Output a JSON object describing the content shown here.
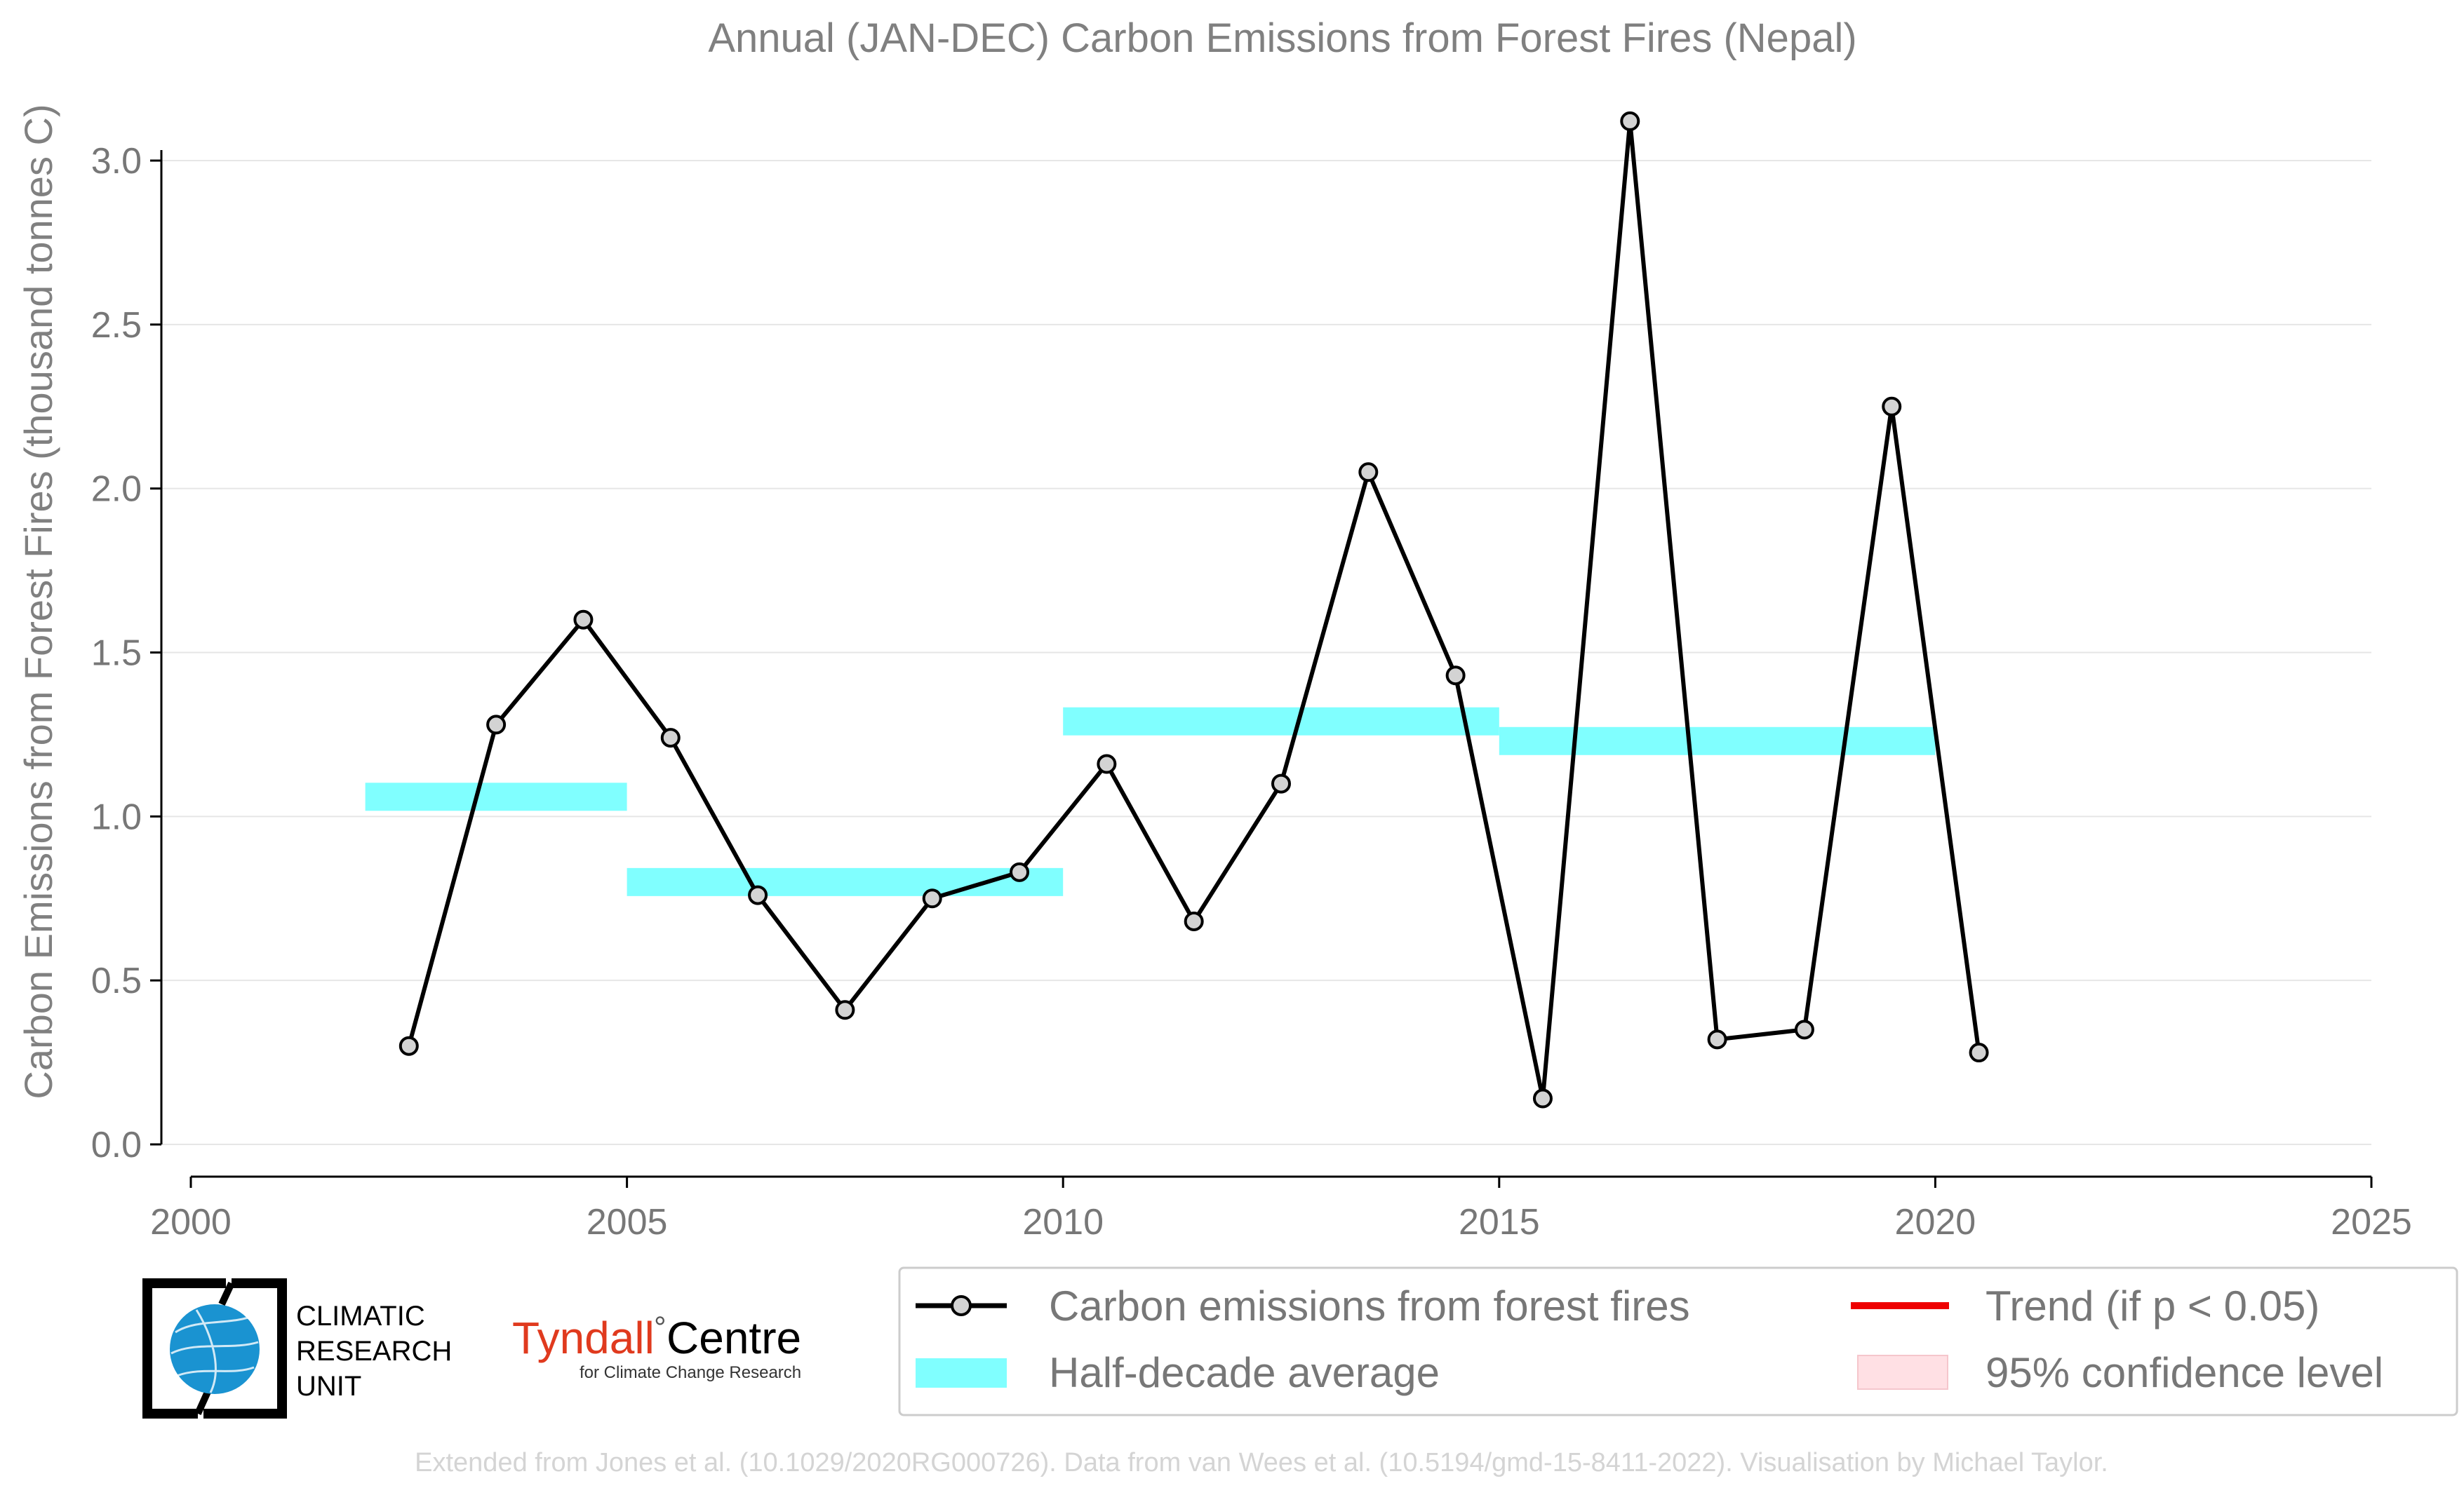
{
  "chart_data": {
    "type": "line",
    "title": "Annual (JAN-DEC) Carbon Emissions from Forest Fires (Nepal)",
    "xlabel": "",
    "ylabel": "Carbon Emissions from Forest Fires (thousand tonnes C)",
    "xlim": [
      2000,
      2025
    ],
    "ylim": [
      0.0,
      3.15
    ],
    "x_ticks": [
      "2000",
      "2005",
      "2010",
      "2015",
      "2020",
      "2025"
    ],
    "y_ticks": [
      "0.0",
      "0.5",
      "1.0",
      "1.5",
      "2.0",
      "2.5",
      "3.0"
    ],
    "grid": "horizontal",
    "series": [
      {
        "name": "Carbon emissions from forest fires",
        "color": "#000000",
        "x": [
          2002.5,
          2003.5,
          2004.5,
          2005.5,
          2006.5,
          2007.5,
          2008.5,
          2009.5,
          2010.5,
          2011.5,
          2012.5,
          2013.5,
          2014.5,
          2015.5,
          2016.5,
          2017.5,
          2018.5,
          2019.5,
          2020.5
        ],
        "values": [
          0.3,
          1.28,
          1.6,
          1.24,
          0.76,
          0.41,
          0.75,
          0.83,
          1.16,
          0.68,
          1.1,
          2.05,
          1.43,
          0.14,
          3.12,
          0.32,
          0.35,
          2.25,
          0.28
        ]
      },
      {
        "name": "Half-decade average",
        "color": "#80ffff",
        "segments": [
          {
            "x_start": 2002,
            "x_end": 2005,
            "value": 1.06
          },
          {
            "x_start": 2005,
            "x_end": 2010,
            "value": 0.8
          },
          {
            "x_start": 2010,
            "x_end": 2015,
            "value": 1.29
          },
          {
            "x_start": 2015,
            "x_end": 2020,
            "value": 1.23
          }
        ]
      }
    ],
    "legend": {
      "placement": "bottom-right",
      "entries": [
        {
          "label": "Carbon emissions from forest fires",
          "style": "line-marker",
          "color": "#000000"
        },
        {
          "label": "Half-decade average",
          "style": "band",
          "color": "#80ffff"
        },
        {
          "label": "Trend (if p < 0.05)",
          "style": "line",
          "color": "#ee0000"
        },
        {
          "label": "95% confidence level",
          "style": "shade",
          "color": "#ffe0e4"
        }
      ]
    }
  },
  "logos": {
    "cru": {
      "line1": "CLIMATIC",
      "line2": "RESEARCH",
      "line3": "UNIT"
    },
    "tyndall": {
      "name": "Tyndall",
      "degree": "°",
      "centre": "Centre",
      "sub": "for Climate Change Research"
    }
  },
  "credit": "Extended from Jones et al. (10.1029/2020RG000726). Data from van Wees et al. (10.5194/gmd-15-8411-2022). Visualisation by Michael Taylor.",
  "colors": {
    "line": "#000000",
    "marker_fill": "#d3d3d3",
    "band": "#80ffff",
    "trend": "#ee0000",
    "confidence": "#ffe0e4",
    "grid": "#e6e6e6",
    "text": "#777777"
  }
}
